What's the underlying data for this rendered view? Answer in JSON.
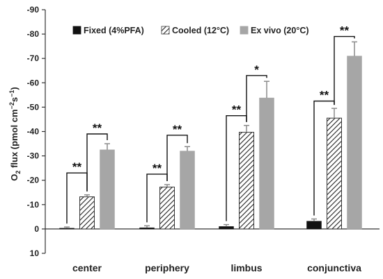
{
  "chart_data": {
    "type": "bar",
    "ylabel_main": "O",
    "ylabel_sub": "2",
    "ylabel_rest": " flux (pmol cm",
    "ylabel_sup1": "−2",
    "ylabel_s": "s",
    "ylabel_sup2": "−1",
    "ylabel_close": ")",
    "ylim": [
      10,
      -90
    ],
    "yticks": [
      10,
      0,
      -10,
      -20,
      -30,
      -40,
      -50,
      -60,
      -70,
      -80,
      -90
    ],
    "categories": [
      "center",
      "periphery",
      "limbus",
      "conjunctiva"
    ],
    "series": [
      {
        "name": "Fixed (4%PFA)",
        "values": [
          -0.3,
          -0.5,
          -1.0,
          -3.2
        ],
        "errors": [
          0.5,
          0.8,
          0.8,
          0.9
        ],
        "color": "#111111",
        "pattern": "solid"
      },
      {
        "name": "Cooled (12°C)",
        "values": [
          -13.2,
          -17.2,
          -39.7,
          -45.5
        ],
        "errors": [
          0.8,
          1.0,
          2.8,
          4.0
        ],
        "color": "#333333",
        "pattern": "hatch"
      },
      {
        "name": "Ex vivo (20°C)",
        "values": [
          -32.5,
          -32.0,
          -53.8,
          -71.0
        ],
        "errors": [
          2.5,
          1.8,
          6.8,
          5.8
        ],
        "color": "#a6a6a6",
        "pattern": "solid"
      }
    ],
    "significance": [
      {
        "category": 0,
        "from": 0,
        "to": 1,
        "level": -23,
        "label": "**"
      },
      {
        "category": 0,
        "from": 1,
        "to": 2,
        "level": -39,
        "label": "**"
      },
      {
        "category": 1,
        "from": 0,
        "to": 1,
        "level": -22.5,
        "label": "**"
      },
      {
        "category": 1,
        "from": 1,
        "to": 2,
        "level": -38.5,
        "label": "**"
      },
      {
        "category": 2,
        "from": 0,
        "to": 1,
        "level": -46.5,
        "label": "**"
      },
      {
        "category": 2,
        "from": 1,
        "to": 2,
        "level": -63,
        "label": "*"
      },
      {
        "category": 3,
        "from": 0,
        "to": 1,
        "level": -52.5,
        "label": "**"
      },
      {
        "category": 3,
        "from": 1,
        "to": 2,
        "level": -79,
        "label": "**"
      }
    ],
    "legend": "top",
    "grid": false
  }
}
